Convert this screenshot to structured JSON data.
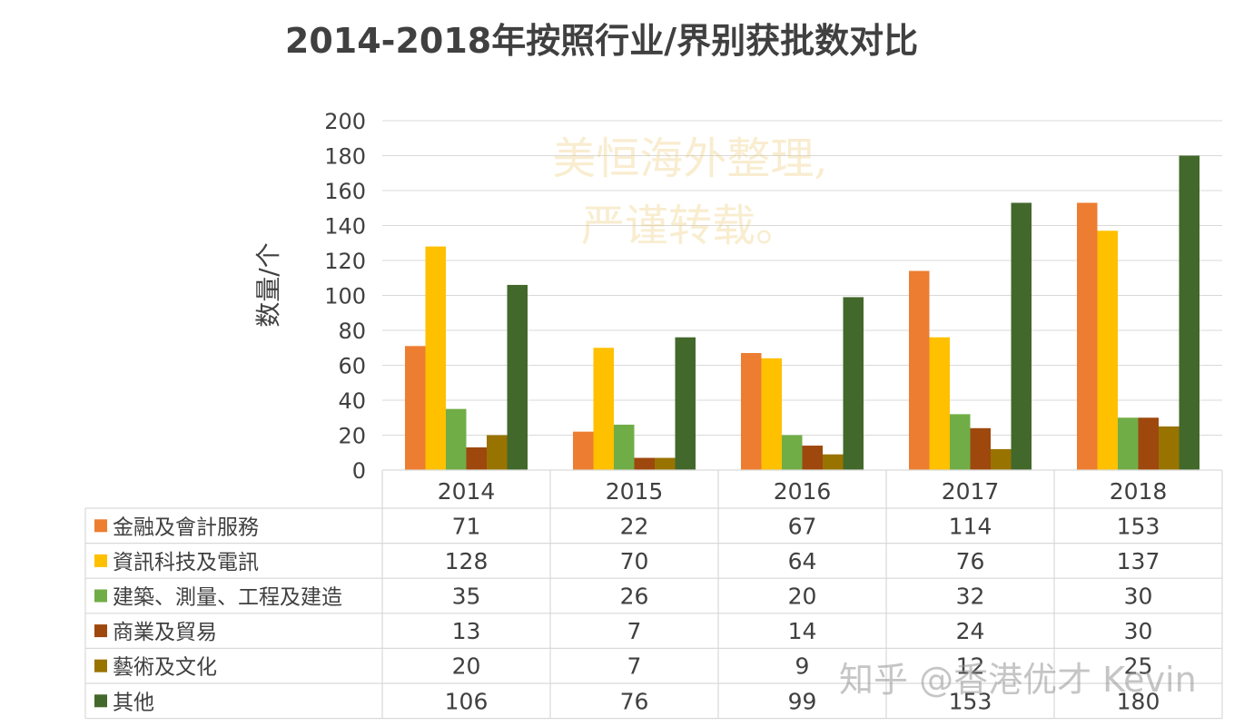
{
  "watermarks": {
    "top_line1": "美恒海外整理,",
    "top_line2": "严谨转载。",
    "bottom": "知乎 @香港优才 Kevin"
  },
  "chart_data": {
    "type": "bar",
    "title": "2014-2018年按照行业/界别获批数对比",
    "xlabel": "",
    "ylabel": "数量/个",
    "ylim": [
      0,
      200
    ],
    "yticks": [
      0,
      20,
      40,
      60,
      80,
      100,
      120,
      140,
      160,
      180,
      200
    ],
    "grid": true,
    "legend": "data-table-left",
    "categories": [
      "2014",
      "2015",
      "2016",
      "2017",
      "2018"
    ],
    "series": [
      {
        "name": "金融及會計服務",
        "color": "#ED7D31",
        "values": [
          71,
          22,
          67,
          114,
          153
        ]
      },
      {
        "name": "資訊科技及電訊",
        "color": "#FFC000",
        "values": [
          128,
          70,
          64,
          76,
          137
        ]
      },
      {
        "name": "建築、測量、工程及建造",
        "color": "#70AD47",
        "values": [
          35,
          26,
          20,
          32,
          30
        ]
      },
      {
        "name": "商業及貿易",
        "color": "#9E480E",
        "values": [
          13,
          7,
          14,
          24,
          30
        ]
      },
      {
        "name": "藝術及文化",
        "color": "#997300",
        "values": [
          20,
          7,
          9,
          12,
          25
        ]
      },
      {
        "name": "其他",
        "color": "#43682B",
        "values": [
          106,
          76,
          99,
          153,
          180
        ]
      }
    ]
  }
}
